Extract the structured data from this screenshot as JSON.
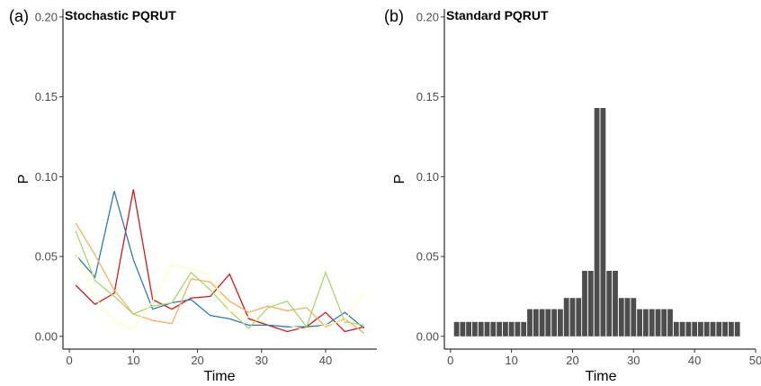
{
  "chart_data": [
    {
      "panel_tag": "(a)",
      "type": "line",
      "title": "Stochastic PQRUT",
      "xlabel": "Time",
      "ylabel": "P",
      "xlim": [
        -1,
        48
      ],
      "ylim": [
        -0.008,
        0.205
      ],
      "x_ticks": [
        "0",
        "10",
        "20",
        "30",
        "40"
      ],
      "y_ticks": [
        "0.00",
        "0.05",
        "0.10",
        "0.15",
        "0.20"
      ],
      "grid": false,
      "series": [
        {
          "color": "#d7191c",
          "x": [
            1,
            4,
            7,
            10,
            13,
            16,
            19,
            22,
            25,
            28,
            31,
            34,
            37,
            40,
            43,
            46
          ],
          "values": [
            0.032,
            0.02,
            0.027,
            0.092,
            0.023,
            0.017,
            0.024,
            0.025,
            0.039,
            0.011,
            0.007,
            0.003,
            0.006,
            0.015,
            0.003,
            0.006
          ]
        },
        {
          "color": "#2c7bb6",
          "x": [
            1,
            4,
            7,
            10,
            13,
            16,
            19,
            22,
            25,
            28,
            31,
            34,
            37,
            40,
            43,
            46
          ],
          "values": [
            0.051,
            0.037,
            0.091,
            0.048,
            0.017,
            0.021,
            0.023,
            0.013,
            0.011,
            0.007,
            0.007,
            0.006,
            0.006,
            0.007,
            0.015,
            0.005
          ]
        },
        {
          "color": "#fdae61",
          "x": [
            1,
            4,
            7,
            10,
            13,
            16,
            19,
            22,
            25,
            28,
            31,
            34,
            37,
            40,
            43,
            46
          ],
          "values": [
            0.071,
            0.051,
            0.029,
            0.014,
            0.01,
            0.008,
            0.036,
            0.034,
            0.022,
            0.015,
            0.019,
            0.016,
            0.018,
            0.006,
            0.011,
            0.002
          ]
        },
        {
          "color": "#a6d96a",
          "x": [
            1,
            4,
            7,
            10,
            13,
            16,
            19,
            22,
            25,
            28,
            31,
            34,
            37,
            40,
            43,
            46
          ],
          "values": [
            0.066,
            0.035,
            0.025,
            0.014,
            0.019,
            0.021,
            0.04,
            0.029,
            0.016,
            0.005,
            0.018,
            0.022,
            0.006,
            0.04,
            0.009,
            0.007
          ]
        },
        {
          "color": "#ffffbf",
          "x": [
            1,
            4,
            7,
            10,
            13,
            16,
            19,
            22,
            25,
            28,
            31,
            34,
            37,
            40,
            43,
            46
          ],
          "values": [
            0.052,
            0.024,
            0.009,
            0.005,
            0.022,
            0.045,
            0.042,
            0.038,
            0.016,
            0.012,
            0.008,
            0.007,
            0.004,
            0.007,
            0.01,
            0.028
          ]
        }
      ]
    },
    {
      "panel_tag": "(b)",
      "type": "bar",
      "title": "Standard PQRUT",
      "xlabel": "Time",
      "ylabel": "P",
      "xlim": [
        -1,
        50
      ],
      "ylim": [
        -0.008,
        0.205
      ],
      "x_ticks": [
        "0",
        "10",
        "20",
        "30",
        "40",
        "50"
      ],
      "y_ticks": [
        "0.00",
        "0.05",
        "0.10",
        "0.15",
        "0.20"
      ],
      "grid": false,
      "bar_color": "#4d4d4d",
      "x": [
        1,
        2,
        3,
        4,
        5,
        6,
        7,
        8,
        9,
        10,
        11,
        12,
        13,
        14,
        15,
        16,
        17,
        18,
        19,
        20,
        21,
        22,
        23,
        24,
        25,
        26,
        27,
        28,
        29,
        30,
        31,
        32,
        33,
        34,
        35,
        36,
        37,
        38,
        39,
        40,
        41,
        42,
        43,
        44,
        45,
        46,
        47
      ],
      "values": [
        0.009,
        0.009,
        0.009,
        0.009,
        0.009,
        0.009,
        0.009,
        0.009,
        0.009,
        0.009,
        0.009,
        0.009,
        0.017,
        0.017,
        0.017,
        0.017,
        0.017,
        0.017,
        0.024,
        0.024,
        0.024,
        0.041,
        0.041,
        0.143,
        0.143,
        0.041,
        0.041,
        0.024,
        0.024,
        0.024,
        0.017,
        0.017,
        0.017,
        0.017,
        0.017,
        0.017,
        0.009,
        0.009,
        0.009,
        0.009,
        0.009,
        0.009,
        0.009,
        0.009,
        0.009,
        0.009,
        0.009
      ]
    }
  ]
}
